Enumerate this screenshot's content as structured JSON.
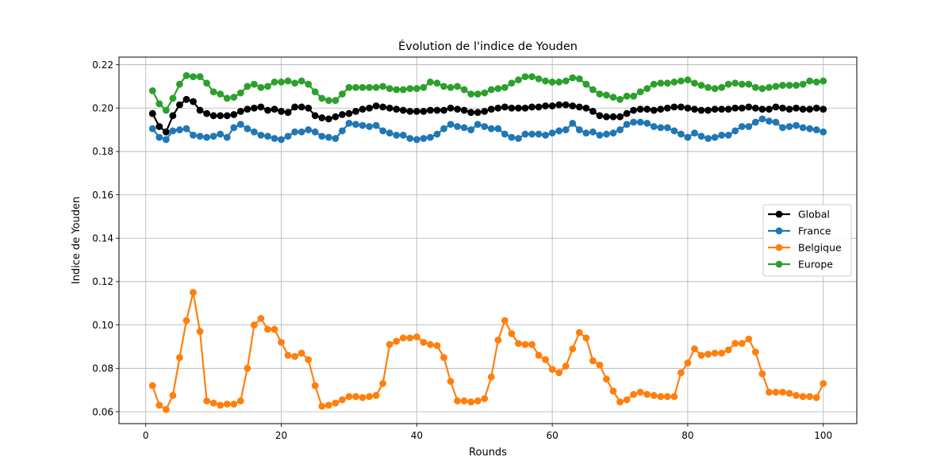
{
  "chart_data": {
    "type": "line",
    "title": "Évolution de l'indice de Youden",
    "xlabel": "Rounds",
    "ylabel": "Indice de Youden",
    "xlim": [
      -3.95,
      104.95
    ],
    "ylim": [
      0.0545,
      0.2235
    ],
    "xticks": [
      0,
      20,
      40,
      60,
      80,
      100
    ],
    "yticks": [
      0.06,
      0.08,
      0.1,
      0.12,
      0.14,
      0.16,
      0.18,
      0.2,
      0.22
    ],
    "xtick_labels": [
      "0",
      "20",
      "40",
      "60",
      "80",
      "100"
    ],
    "ytick_labels": [
      "0.06",
      "0.08",
      "0.10",
      "0.12",
      "0.14",
      "0.16",
      "0.18",
      "0.20",
      "0.22"
    ],
    "grid": true,
    "legend_position": "center-right",
    "x": [
      1,
      2,
      3,
      4,
      5,
      6,
      7,
      8,
      9,
      10,
      11,
      12,
      13,
      14,
      15,
      16,
      17,
      18,
      19,
      20,
      21,
      22,
      23,
      24,
      25,
      26,
      27,
      28,
      29,
      30,
      31,
      32,
      33,
      34,
      35,
      36,
      37,
      38,
      39,
      40,
      41,
      42,
      43,
      44,
      45,
      46,
      47,
      48,
      49,
      50,
      51,
      52,
      53,
      54,
      55,
      56,
      57,
      58,
      59,
      60,
      61,
      62,
      63,
      64,
      65,
      66,
      67,
      68,
      69,
      70,
      71,
      72,
      73,
      74,
      75,
      76,
      77,
      78,
      79,
      80,
      81,
      82,
      83,
      84,
      85,
      86,
      87,
      88,
      89,
      90,
      91,
      92,
      93,
      94,
      95,
      96,
      97,
      98,
      99,
      100
    ],
    "series": [
      {
        "name": "Global",
        "color": "#000000",
        "values": [
          0.1975,
          0.1915,
          0.189,
          0.1965,
          0.2015,
          0.204,
          0.203,
          0.199,
          0.1975,
          0.1965,
          0.1965,
          0.1965,
          0.197,
          0.1985,
          0.1995,
          0.2,
          0.2005,
          0.199,
          0.1995,
          0.1985,
          0.198,
          0.2005,
          0.2005,
          0.2,
          0.1965,
          0.1955,
          0.195,
          0.196,
          0.197,
          0.1975,
          0.1985,
          0.1995,
          0.2,
          0.201,
          0.2005,
          0.2,
          0.1995,
          0.199,
          0.1985,
          0.1985,
          0.1985,
          0.199,
          0.199,
          0.199,
          0.2,
          0.1995,
          0.199,
          0.198,
          0.198,
          0.1985,
          0.1995,
          0.2,
          0.2005,
          0.2,
          0.2,
          0.2,
          0.2005,
          0.2005,
          0.201,
          0.201,
          0.2015,
          0.2015,
          0.201,
          0.2005,
          0.2,
          0.1985,
          0.1965,
          0.196,
          0.196,
          0.196,
          0.1975,
          0.199,
          0.1995,
          0.1995,
          0.199,
          0.1995,
          0.2,
          0.2005,
          0.2005,
          0.2,
          0.1995,
          0.199,
          0.199,
          0.1995,
          0.1995,
          0.1995,
          0.2,
          0.2,
          0.2005,
          0.2,
          0.1995,
          0.1995,
          0.2005,
          0.2,
          0.1995,
          0.2,
          0.1995,
          0.1995,
          0.2,
          0.1995
        ]
      },
      {
        "name": "France",
        "color": "#1f77b4",
        "values": [
          0.1905,
          0.1865,
          0.1855,
          0.1895,
          0.19,
          0.1905,
          0.1875,
          0.187,
          0.1865,
          0.187,
          0.188,
          0.1865,
          0.191,
          0.1925,
          0.1905,
          0.189,
          0.1875,
          0.187,
          0.186,
          0.1855,
          0.187,
          0.189,
          0.189,
          0.19,
          0.189,
          0.187,
          0.1865,
          0.186,
          0.1895,
          0.193,
          0.1925,
          0.192,
          0.1915,
          0.192,
          0.1895,
          0.1885,
          0.1875,
          0.1875,
          0.186,
          0.1855,
          0.186,
          0.1865,
          0.188,
          0.1905,
          0.1925,
          0.1915,
          0.191,
          0.19,
          0.1925,
          0.1915,
          0.1905,
          0.1905,
          0.188,
          0.1865,
          0.186,
          0.188,
          0.188,
          0.188,
          0.1875,
          0.1885,
          0.1895,
          0.19,
          0.193,
          0.19,
          0.1885,
          0.189,
          0.1875,
          0.188,
          0.1885,
          0.19,
          0.1925,
          0.1935,
          0.1935,
          0.193,
          0.1915,
          0.191,
          0.191,
          0.1895,
          0.188,
          0.1865,
          0.1885,
          0.187,
          0.186,
          0.1865,
          0.1875,
          0.1875,
          0.1895,
          0.1915,
          0.1915,
          0.1935,
          0.195,
          0.194,
          0.1935,
          0.191,
          0.1915,
          0.192,
          0.191,
          0.1905,
          0.19,
          0.189
        ]
      },
      {
        "name": "Belgique",
        "color": "#ff7f0e",
        "values": [
          0.072,
          0.063,
          0.061,
          0.0675,
          0.085,
          0.102,
          0.115,
          0.097,
          0.065,
          0.064,
          0.063,
          0.0635,
          0.0635,
          0.065,
          0.08,
          0.1,
          0.103,
          0.098,
          0.098,
          0.092,
          0.086,
          0.0855,
          0.087,
          0.084,
          0.072,
          0.0625,
          0.063,
          0.064,
          0.0655,
          0.067,
          0.067,
          0.0665,
          0.067,
          0.0675,
          0.073,
          0.091,
          0.0925,
          0.094,
          0.094,
          0.0945,
          0.092,
          0.091,
          0.0905,
          0.085,
          0.074,
          0.065,
          0.065,
          0.0645,
          0.065,
          0.066,
          0.076,
          0.093,
          0.102,
          0.096,
          0.0915,
          0.091,
          0.091,
          0.086,
          0.084,
          0.0795,
          0.078,
          0.081,
          0.089,
          0.0965,
          0.094,
          0.0835,
          0.0815,
          0.075,
          0.0695,
          0.0645,
          0.0655,
          0.068,
          0.069,
          0.068,
          0.0675,
          0.067,
          0.067,
          0.067,
          0.078,
          0.0825,
          0.089,
          0.086,
          0.0865,
          0.087,
          0.087,
          0.0885,
          0.0915,
          0.0915,
          0.0935,
          0.0875,
          0.0775,
          0.069,
          0.069,
          0.069,
          0.0685,
          0.0675,
          0.067,
          0.067,
          0.0665,
          0.073
        ]
      },
      {
        "name": "Europe",
        "color": "#2ca02c",
        "values": [
          0.208,
          0.202,
          0.199,
          0.2045,
          0.211,
          0.215,
          0.2145,
          0.2145,
          0.2115,
          0.2075,
          0.2065,
          0.2045,
          0.205,
          0.207,
          0.21,
          0.211,
          0.2095,
          0.21,
          0.212,
          0.212,
          0.2125,
          0.2115,
          0.2125,
          0.211,
          0.2075,
          0.2045,
          0.2035,
          0.2035,
          0.2065,
          0.2095,
          0.2095,
          0.2095,
          0.2095,
          0.2095,
          0.21,
          0.209,
          0.2085,
          0.2085,
          0.209,
          0.209,
          0.2095,
          0.212,
          0.2115,
          0.21,
          0.2095,
          0.21,
          0.2085,
          0.2065,
          0.2065,
          0.207,
          0.2085,
          0.209,
          0.2095,
          0.2115,
          0.213,
          0.2145,
          0.2145,
          0.2135,
          0.2125,
          0.212,
          0.212,
          0.2125,
          0.214,
          0.2135,
          0.211,
          0.2085,
          0.2065,
          0.206,
          0.205,
          0.204,
          0.2055,
          0.2055,
          0.2075,
          0.209,
          0.211,
          0.2115,
          0.2115,
          0.212,
          0.2125,
          0.213,
          0.2115,
          0.2105,
          0.2095,
          0.209,
          0.2095,
          0.211,
          0.2115,
          0.211,
          0.211,
          0.2095,
          0.209,
          0.2095,
          0.21,
          0.2105,
          0.2105,
          0.2105,
          0.211,
          0.2125,
          0.212,
          0.2125
        ]
      }
    ]
  }
}
